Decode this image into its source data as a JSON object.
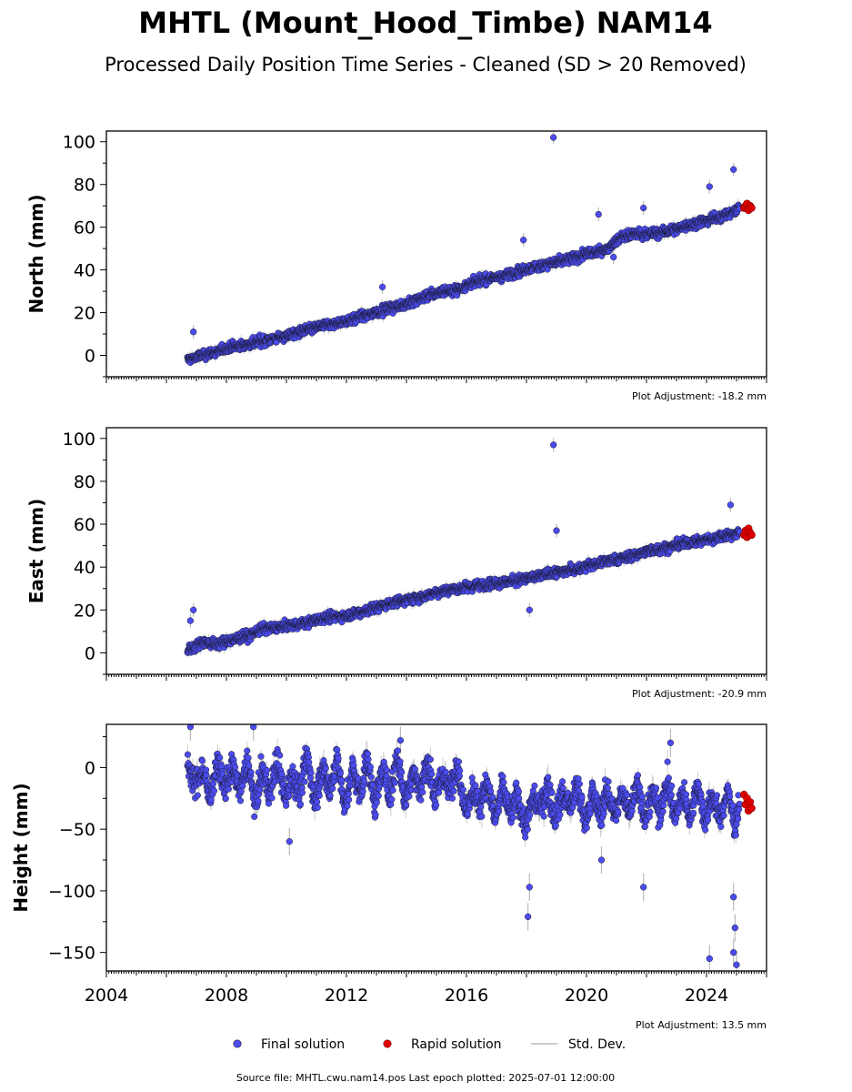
{
  "title": "MHTL (Mount_Hood_Timbe) NAM14",
  "subtitle": "Processed Daily Position Time Series - Cleaned (SD > 20 Removed)",
  "footer": "Source file: MHTL.cwu.nam14.pos  Last epoch plotted: 2025-07-01 12:00:00",
  "legend": {
    "final_label": "Final solution",
    "rapid_label": "Rapid solution",
    "std_label": "Std. Dev."
  },
  "colors": {
    "final": "#4b4bf0",
    "rapid": "#e00000",
    "std": "#bbbbbb",
    "marker_edge": "#1a1a2e"
  },
  "chart_data": [
    {
      "type": "scatter",
      "panel": "north",
      "ylabel": "North (mm)",
      "xlim": [
        2004,
        2026
      ],
      "ylim": [
        -10,
        105
      ],
      "yticks": [
        0,
        20,
        40,
        60,
        80,
        100
      ],
      "ytick_labels": [
        "0",
        "20",
        "40",
        "60",
        "80",
        "100"
      ],
      "plot_adjustment": "Plot Adjustment: -18.2 mm",
      "series": [
        {
          "name": "Final solution",
          "x": [
            2006.7,
            2007.2,
            2007.7,
            2008.2,
            2008.7,
            2009.2,
            2009.7,
            2010.2,
            2010.7,
            2011.2,
            2011.7,
            2012.2,
            2012.7,
            2013.2,
            2013.7,
            2014.2,
            2014.7,
            2015.2,
            2015.7,
            2016.2,
            2016.7,
            2017.2,
            2017.7,
            2018.2,
            2018.7,
            2019.2,
            2019.7,
            2020.2,
            2020.7,
            2021.2,
            2021.7,
            2022.2,
            2022.7,
            2023.2,
            2023.7,
            2024.2,
            2024.7,
            2025.1
          ],
          "y": [
            -2,
            0,
            2,
            4,
            5,
            7,
            8,
            10,
            12,
            14,
            15,
            17,
            19,
            21,
            23,
            25,
            28,
            30,
            31,
            34,
            36,
            37,
            39,
            41,
            43,
            44,
            46,
            48,
            50,
            56,
            57,
            57,
            58,
            60,
            62,
            64,
            66,
            69
          ]
        },
        {
          "name": "Rapid solution",
          "x": [
            2025.25,
            2025.3,
            2025.35,
            2025.4,
            2025.45,
            2025.5
          ],
          "y": [
            69,
            70,
            71,
            68,
            70,
            69
          ]
        }
      ],
      "outliers": [
        {
          "x": 2006.9,
          "y": 11
        },
        {
          "x": 2013.2,
          "y": 32
        },
        {
          "x": 2017.9,
          "y": 54
        },
        {
          "x": 2018.9,
          "y": 102
        },
        {
          "x": 2020.4,
          "y": 66
        },
        {
          "x": 2020.9,
          "y": 46
        },
        {
          "x": 2021.9,
          "y": 69
        },
        {
          "x": 2024.1,
          "y": 79
        },
        {
          "x": 2024.9,
          "y": 87
        }
      ]
    },
    {
      "type": "scatter",
      "panel": "east",
      "ylabel": "East (mm)",
      "xlim": [
        2004,
        2026
      ],
      "ylim": [
        -10,
        105
      ],
      "yticks": [
        0,
        20,
        40,
        60,
        80,
        100
      ],
      "ytick_labels": [
        "0",
        "20",
        "40",
        "60",
        "80",
        "100"
      ],
      "plot_adjustment": "Plot Adjustment: -20.9 mm",
      "series": [
        {
          "name": "Final solution",
          "x": [
            2006.7,
            2007.2,
            2007.7,
            2008.2,
            2008.7,
            2009.2,
            2009.7,
            2010.2,
            2010.7,
            2011.2,
            2011.7,
            2012.2,
            2012.7,
            2013.2,
            2013.7,
            2014.2,
            2014.7,
            2015.2,
            2015.7,
            2016.2,
            2016.7,
            2017.2,
            2017.7,
            2018.2,
            2018.7,
            2019.2,
            2019.7,
            2020.2,
            2020.7,
            2021.2,
            2021.7,
            2022.2,
            2022.7,
            2023.2,
            2023.7,
            2024.2,
            2024.7,
            2025.1
          ],
          "y": [
            1,
            5,
            4,
            6,
            8,
            11,
            12,
            13,
            14,
            16,
            17,
            18,
            20,
            22,
            24,
            25,
            27,
            29,
            30,
            31,
            32,
            33,
            34,
            35,
            37,
            38,
            39,
            41,
            43,
            44,
            46,
            48,
            49,
            51,
            52,
            53,
            55,
            56
          ]
        },
        {
          "name": "Rapid solution",
          "x": [
            2025.25,
            2025.3,
            2025.35,
            2025.4,
            2025.45,
            2025.5
          ],
          "y": [
            55,
            57,
            54,
            58,
            56,
            55
          ]
        }
      ],
      "outliers": [
        {
          "x": 2006.9,
          "y": 20
        },
        {
          "x": 2006.8,
          "y": 15
        },
        {
          "x": 2018.1,
          "y": 20
        },
        {
          "x": 2018.9,
          "y": 97
        },
        {
          "x": 2019.0,
          "y": 57
        },
        {
          "x": 2024.8,
          "y": 69
        }
      ]
    },
    {
      "type": "scatter",
      "panel": "height",
      "ylabel": "Height (mm)",
      "xlim": [
        2004,
        2026
      ],
      "ylim": [
        -165,
        35
      ],
      "yticks": [
        -150,
        -100,
        -50,
        0
      ],
      "ytick_labels": [
        "−150",
        "−100",
        "−50",
        "0"
      ],
      "xticks": [
        2004,
        2008,
        2012,
        2016,
        2020,
        2024
      ],
      "xtick_labels": [
        "2004",
        "2008",
        "2012",
        "2016",
        "2020",
        "2024"
      ],
      "plot_adjustment": "Plot Adjustment: 13.5 mm",
      "series": [
        {
          "name": "Final solution",
          "x": [
            2006.7,
            2006.95,
            2007.2,
            2007.45,
            2007.7,
            2007.95,
            2008.2,
            2008.45,
            2008.7,
            2008.95,
            2009.2,
            2009.45,
            2009.7,
            2009.95,
            2010.2,
            2010.45,
            2010.7,
            2010.95,
            2011.2,
            2011.45,
            2011.7,
            2011.95,
            2012.2,
            2012.45,
            2012.7,
            2012.95,
            2013.2,
            2013.45,
            2013.7,
            2013.95,
            2014.2,
            2014.45,
            2014.7,
            2014.95,
            2015.2,
            2015.45,
            2015.7,
            2015.95,
            2016.2,
            2016.45,
            2016.7,
            2016.95,
            2017.2,
            2017.45,
            2017.7,
            2017.95,
            2018.2,
            2018.45,
            2018.7,
            2018.95,
            2019.2,
            2019.45,
            2019.7,
            2019.95,
            2020.2,
            2020.45,
            2020.7,
            2020.95,
            2021.2,
            2021.45,
            2021.7,
            2021.95,
            2022.2,
            2022.45,
            2022.7,
            2022.95,
            2023.2,
            2023.45,
            2023.7,
            2023.95,
            2024.2,
            2024.45,
            2024.7,
            2024.95,
            2025.1
          ],
          "y": [
            5,
            -15,
            0,
            -25,
            5,
            -20,
            2,
            -20,
            5,
            -30,
            -2,
            -20,
            8,
            -25,
            -5,
            -22,
            10,
            -30,
            2,
            -20,
            10,
            -35,
            0,
            -22,
            8,
            -30,
            0,
            -25,
            10,
            -28,
            -2,
            -20,
            5,
            -25,
            -5,
            -20,
            5,
            -35,
            -15,
            -35,
            -10,
            -45,
            -15,
            -40,
            -20,
            -50,
            -25,
            -35,
            -15,
            -40,
            -20,
            -35,
            -15,
            -45,
            -20,
            -40,
            -18,
            -40,
            -20,
            -35,
            -12,
            -45,
            -20,
            -38,
            -10,
            -42,
            -18,
            -40,
            -12,
            -45,
            -22,
            -42,
            -18,
            -48,
            -25
          ]
        },
        {
          "name": "Rapid solution",
          "x": [
            2025.25,
            2025.3,
            2025.35,
            2025.4,
            2025.45,
            2025.5
          ],
          "y": [
            -22,
            -30,
            -25,
            -35,
            -28,
            -33
          ]
        }
      ],
      "outliers": [
        {
          "x": 2006.8,
          "y": 33
        },
        {
          "x": 2008.9,
          "y": 33
        },
        {
          "x": 2010.1,
          "y": -60
        },
        {
          "x": 2013.8,
          "y": 22
        },
        {
          "x": 2018.1,
          "y": -97
        },
        {
          "x": 2018.05,
          "y": -121
        },
        {
          "x": 2020.5,
          "y": -75
        },
        {
          "x": 2021.9,
          "y": -97
        },
        {
          "x": 2022.8,
          "y": 20
        },
        {
          "x": 2024.1,
          "y": -155
        },
        {
          "x": 2024.9,
          "y": -150
        },
        {
          "x": 2025.0,
          "y": -160
        },
        {
          "x": 2024.95,
          "y": -130
        },
        {
          "x": 2024.9,
          "y": -105
        }
      ]
    }
  ]
}
